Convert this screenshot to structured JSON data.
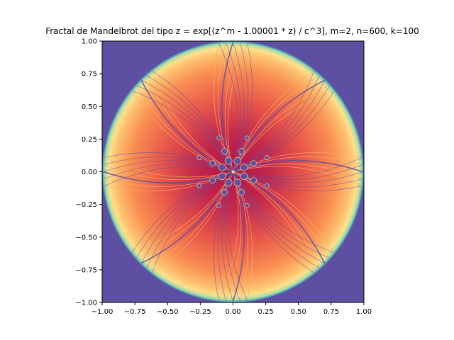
{
  "chart_data": {
    "type": "heatmap",
    "title": "Fractal de Mandelbrot del tipo z = exp[(z^m - 1.00001 * z) / c^3], m=2, n=600, k=100",
    "xlabel": "",
    "ylabel": "",
    "xlim": [
      -1.0,
      1.0
    ],
    "ylim": [
      -1.0,
      1.0
    ],
    "xticks": [
      "−1.00",
      "−0.75",
      "−0.50",
      "−0.25",
      "0.00",
      "0.25",
      "0.50",
      "0.75",
      "1.00"
    ],
    "yticks": [
      "−1.00",
      "−0.75",
      "−0.50",
      "−0.25",
      "0.00",
      "0.25",
      "0.50",
      "0.75",
      "1.00"
    ],
    "xtick_values": [
      -1.0,
      -0.75,
      -0.5,
      -0.25,
      0.0,
      0.25,
      0.5,
      0.75,
      1.0
    ],
    "ytick_values": [
      -1.0,
      -0.75,
      -0.5,
      -0.25,
      0.0,
      0.25,
      0.5,
      0.75,
      1.0
    ],
    "colormap": "Spectral",
    "grid": false,
    "colors": {
      "background": "#5e4fa2",
      "core": "#b2124b",
      "mid": "#f46d43",
      "light": "#fee08b",
      "edge": "#abdda4",
      "outer": "#3288bd"
    },
    "disc_radius": 1.0,
    "petals": 8
  }
}
